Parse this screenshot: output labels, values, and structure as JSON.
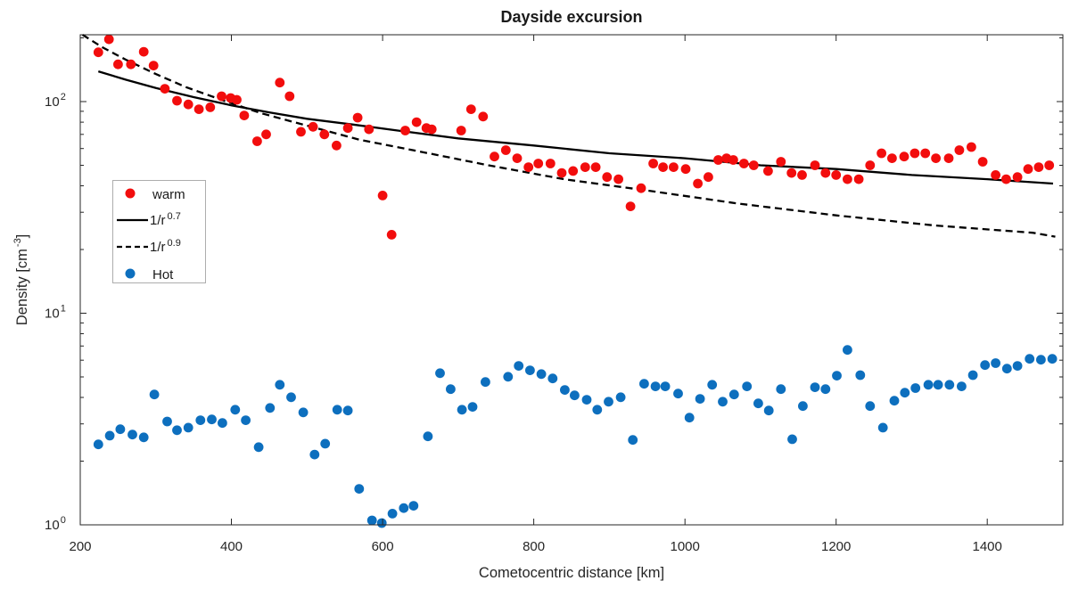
{
  "chart_data": {
    "type": "scatter",
    "title": "Dayside excursion",
    "xlabel": "Cometocentric distance [km]",
    "ylabel": {
      "prefix": "Density [cm",
      "sup": "-3",
      "suffix": "]"
    },
    "xlim": [
      200,
      1500
    ],
    "ylim": [
      1,
      207
    ],
    "ylog": true,
    "grid": false,
    "x_ticks": [
      200,
      400,
      600,
      800,
      1000,
      1200,
      1400
    ],
    "y_tick_base": "10",
    "y_tick_exponents": [
      0,
      1,
      2
    ],
    "axis_color": "#262626",
    "legend": {
      "position": "west",
      "items": [
        {
          "label": "warm",
          "sup": "",
          "marker": "dot",
          "color": "#f20d0d"
        },
        {
          "label": "1/r",
          "sup": "0.7",
          "marker": "solid-line",
          "color": "#000000"
        },
        {
          "label": "1/r",
          "sup": "0.9",
          "marker": "dashed-line",
          "color": "#000000"
        },
        {
          "label": "Hot",
          "sup": "",
          "marker": "dot",
          "color": "#0d6fbe"
        }
      ]
    },
    "series": [
      {
        "name": "warm",
        "color": "#f20d0d",
        "points": [
          [
            224,
            171
          ],
          [
            238,
            197
          ],
          [
            250,
            150
          ],
          [
            267,
            150
          ],
          [
            284,
            172
          ],
          [
            297,
            148
          ],
          [
            312,
            115
          ],
          [
            328,
            101
          ],
          [
            343,
            97
          ],
          [
            357,
            92
          ],
          [
            372,
            94
          ],
          [
            387,
            106
          ],
          [
            399,
            104
          ],
          [
            407,
            102
          ],
          [
            417,
            86
          ],
          [
            434,
            65
          ],
          [
            446,
            70
          ],
          [
            464,
            123
          ],
          [
            477,
            106
          ],
          [
            492,
            72
          ],
          [
            508,
            76
          ],
          [
            523,
            70
          ],
          [
            539,
            62
          ],
          [
            554,
            75
          ],
          [
            567,
            84
          ],
          [
            582,
            74
          ],
          [
            600,
            36
          ],
          [
            612,
            23.5
          ],
          [
            630,
            73
          ],
          [
            645,
            80
          ],
          [
            658,
            75
          ],
          [
            665,
            74
          ],
          [
            704,
            73
          ],
          [
            717,
            92
          ],
          [
            733,
            85
          ],
          [
            748,
            55
          ],
          [
            763,
            59
          ],
          [
            778,
            54
          ],
          [
            793,
            49
          ],
          [
            806,
            51
          ],
          [
            822,
            51
          ],
          [
            837,
            46
          ],
          [
            852,
            47
          ],
          [
            868,
            49
          ],
          [
            882,
            49
          ],
          [
            897,
            44
          ],
          [
            912,
            43
          ],
          [
            928,
            32
          ],
          [
            942,
            39
          ],
          [
            958,
            51
          ],
          [
            971,
            49
          ],
          [
            985,
            49
          ],
          [
            1001,
            48
          ],
          [
            1017,
            41
          ],
          [
            1031,
            44
          ],
          [
            1044,
            53
          ],
          [
            1055,
            54
          ],
          [
            1064,
            53
          ],
          [
            1078,
            51
          ],
          [
            1091,
            50
          ],
          [
            1110,
            47
          ],
          [
            1127,
            52
          ],
          [
            1141,
            46
          ],
          [
            1155,
            45
          ],
          [
            1172,
            50
          ],
          [
            1186,
            46
          ],
          [
            1200,
            45
          ],
          [
            1215,
            43
          ],
          [
            1230,
            43
          ],
          [
            1245,
            50
          ],
          [
            1260,
            57
          ],
          [
            1274,
            54
          ],
          [
            1290,
            55
          ],
          [
            1304,
            57
          ],
          [
            1318,
            57
          ],
          [
            1332,
            54
          ],
          [
            1349,
            54
          ],
          [
            1363,
            59
          ],
          [
            1379,
            61
          ],
          [
            1394,
            52
          ],
          [
            1411,
            45
          ],
          [
            1425,
            43
          ],
          [
            1440,
            44
          ],
          [
            1454,
            48
          ],
          [
            1468,
            49
          ],
          [
            1482,
            50
          ]
        ]
      },
      {
        "name": "Hot",
        "color": "#0d6fbe",
        "points": [
          [
            224,
            2.4
          ],
          [
            239,
            2.64
          ],
          [
            253,
            2.83
          ],
          [
            269,
            2.67
          ],
          [
            284,
            2.59
          ],
          [
            298,
            4.13
          ],
          [
            315,
            3.08
          ],
          [
            328,
            2.8
          ],
          [
            343,
            2.88
          ],
          [
            359,
            3.12
          ],
          [
            374,
            3.15
          ],
          [
            388,
            3.03
          ],
          [
            405,
            3.5
          ],
          [
            419,
            3.12
          ],
          [
            436,
            2.33
          ],
          [
            451,
            3.57
          ],
          [
            464,
            4.59
          ],
          [
            479,
            4.01
          ],
          [
            495,
            3.4
          ],
          [
            510,
            2.15
          ],
          [
            524,
            2.42
          ],
          [
            540,
            3.5
          ],
          [
            554,
            3.47
          ],
          [
            569,
            1.48
          ],
          [
            586,
            1.05
          ],
          [
            599,
            1.02
          ],
          [
            613,
            1.13
          ],
          [
            628,
            1.2
          ],
          [
            641,
            1.23
          ],
          [
            660,
            2.62
          ],
          [
            676,
            5.21
          ],
          [
            690,
            4.38
          ],
          [
            705,
            3.5
          ],
          [
            719,
            3.61
          ],
          [
            736,
            4.73
          ],
          [
            766,
            5.01
          ],
          [
            780,
            5.64
          ],
          [
            795,
            5.37
          ],
          [
            810,
            5.16
          ],
          [
            825,
            4.92
          ],
          [
            841,
            4.34
          ],
          [
            854,
            4.09
          ],
          [
            870,
            3.9
          ],
          [
            884,
            3.5
          ],
          [
            899,
            3.82
          ],
          [
            915,
            4.01
          ],
          [
            931,
            2.52
          ],
          [
            946,
            4.64
          ],
          [
            961,
            4.51
          ],
          [
            974,
            4.51
          ],
          [
            991,
            4.17
          ],
          [
            1006,
            3.21
          ],
          [
            1020,
            3.94
          ],
          [
            1036,
            4.59
          ],
          [
            1050,
            3.82
          ],
          [
            1065,
            4.13
          ],
          [
            1082,
            4.51
          ],
          [
            1097,
            3.75
          ],
          [
            1111,
            3.47
          ],
          [
            1127,
            4.38
          ],
          [
            1142,
            2.54
          ],
          [
            1156,
            3.64
          ],
          [
            1172,
            4.47
          ],
          [
            1186,
            4.38
          ],
          [
            1201,
            5.07
          ],
          [
            1215,
            6.71
          ],
          [
            1232,
            5.1
          ],
          [
            1245,
            3.64
          ],
          [
            1262,
            2.88
          ],
          [
            1277,
            3.86
          ],
          [
            1291,
            4.21
          ],
          [
            1305,
            4.43
          ],
          [
            1322,
            4.59
          ],
          [
            1335,
            4.59
          ],
          [
            1350,
            4.59
          ],
          [
            1366,
            4.51
          ],
          [
            1381,
            5.1
          ],
          [
            1397,
            5.69
          ],
          [
            1411,
            5.81
          ],
          [
            1426,
            5.47
          ],
          [
            1440,
            5.64
          ],
          [
            1456,
            6.09
          ],
          [
            1471,
            6.03
          ],
          [
            1486,
            6.09
          ]
        ]
      }
    ],
    "curves": [
      {
        "name": "1/r^0.7",
        "style": "solid",
        "color": "#000000",
        "points": [
          [
            224,
            139
          ],
          [
            260,
            127
          ],
          [
            300,
            116
          ],
          [
            350,
            105
          ],
          [
            400,
            96
          ],
          [
            450,
            89
          ],
          [
            500,
            83
          ],
          [
            560,
            78
          ],
          [
            620,
            73
          ],
          [
            700,
            67
          ],
          [
            800,
            62
          ],
          [
            900,
            57
          ],
          [
            1000,
            54
          ],
          [
            1100,
            50
          ],
          [
            1200,
            48
          ],
          [
            1300,
            45
          ],
          [
            1400,
            43
          ],
          [
            1487,
            41
          ]
        ]
      },
      {
        "name": "1/r^0.9",
        "style": "dashed",
        "color": "#000000",
        "points": [
          [
            203,
            207
          ],
          [
            230,
            180
          ],
          [
            260,
            158
          ],
          [
            300,
            135
          ],
          [
            340,
            117
          ],
          [
            390,
            101
          ],
          [
            440,
            88
          ],
          [
            500,
            77
          ],
          [
            570,
            66
          ],
          [
            650,
            58
          ],
          [
            740,
            50
          ],
          [
            840,
            43
          ],
          [
            950,
            38
          ],
          [
            1070,
            33
          ],
          [
            1200,
            29
          ],
          [
            1330,
            26
          ],
          [
            1460,
            24
          ],
          [
            1490,
            23
          ]
        ]
      }
    ]
  }
}
